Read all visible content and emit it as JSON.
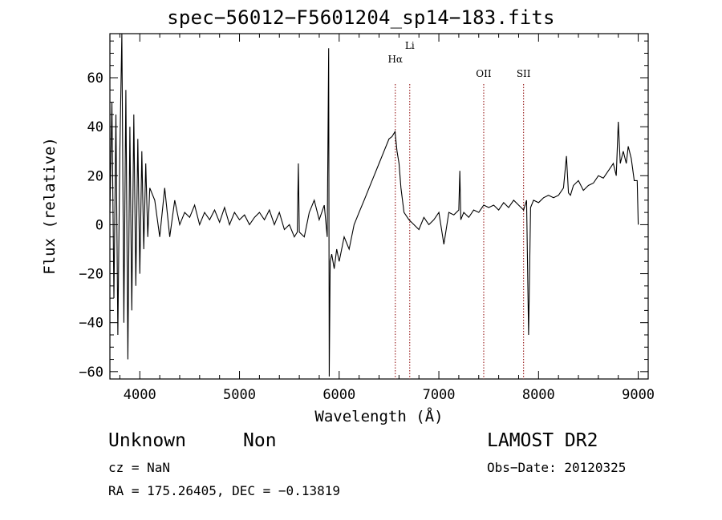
{
  "chart_data": {
    "type": "line",
    "title": "spec−56012−F5601204_sp14−183.fits",
    "xlabel": "Wavelength (Å)",
    "ylabel": "Flux (relative)",
    "xlim": [
      3700,
      9100
    ],
    "ylim": [
      -63,
      78
    ],
    "x_ticks": [
      4000,
      5000,
      6000,
      7000,
      8000,
      9000
    ],
    "y_ticks": [
      -60,
      -40,
      -20,
      0,
      20,
      40,
      60
    ],
    "y_tick_labels": [
      "−60",
      "−40",
      "−20",
      "0",
      "20",
      "40",
      "60"
    ],
    "lines": [
      {
        "label": "Hα",
        "wavelength": 6563
      },
      {
        "label": "Li",
        "wavelength": 6708
      },
      {
        "label": "OII",
        "wavelength": 7450
      },
      {
        "label": "SII",
        "wavelength": 7850
      }
    ],
    "series": [
      {
        "x": [
          3700,
          3720,
          3740,
          3760,
          3780,
          3800,
          3820,
          3840,
          3860,
          3880,
          3900,
          3920,
          3940,
          3960,
          3980,
          4000,
          4020,
          4040,
          4060,
          4080,
          4100,
          4150,
          4200,
          4250,
          4300,
          4350,
          4400,
          4450,
          4500,
          4550,
          4600,
          4650,
          4700,
          4750,
          4800,
          4850,
          4900,
          4950,
          5000,
          5050,
          5100,
          5150,
          5200,
          5250,
          5300,
          5350,
          5400,
          5450,
          5500,
          5550,
          5580,
          5590,
          5600,
          5650,
          5700,
          5750,
          5800,
          5850,
          5880,
          5895,
          5900,
          5910,
          5925,
          5950,
          5975,
          6000,
          6050,
          6100,
          6150,
          6200,
          6250,
          6300,
          6350,
          6400,
          6450,
          6500,
          6530,
          6560,
          6580,
          6600,
          6620,
          6650,
          6700,
          6750,
          6800,
          6850,
          6900,
          6950,
          7000,
          7050,
          7100,
          7150,
          7200,
          7210,
          7220,
          7250,
          7300,
          7350,
          7400,
          7450,
          7500,
          7550,
          7600,
          7650,
          7700,
          7750,
          7800,
          7850,
          7880,
          7900,
          7920,
          7930,
          7950,
          8000,
          8050,
          8100,
          8150,
          8200,
          8250,
          8280,
          8300,
          8320,
          8350,
          8400,
          8450,
          8500,
          8550,
          8600,
          8650,
          8700,
          8750,
          8780,
          8800,
          8820,
          8850,
          8880,
          8900,
          8930,
          8960,
          8990,
          9000
        ],
        "y": [
          5,
          50,
          -30,
          45,
          -45,
          30,
          78,
          -40,
          55,
          -55,
          40,
          -35,
          45,
          -25,
          35,
          -20,
          30,
          -10,
          25,
          -5,
          15,
          10,
          -5,
          15,
          -5,
          10,
          0,
          5,
          3,
          8,
          0,
          5,
          2,
          6,
          1,
          7,
          0,
          5,
          2,
          4,
          0,
          3,
          5,
          2,
          6,
          0,
          5,
          -2,
          0,
          -5,
          -3,
          25,
          -3,
          -5,
          5,
          10,
          2,
          8,
          -5,
          72,
          -62,
          -15,
          -12,
          -18,
          -10,
          -15,
          -5,
          -10,
          0,
          5,
          10,
          15,
          20,
          25,
          30,
          35,
          36,
          38,
          30,
          25,
          15,
          5,
          2,
          0,
          -2,
          3,
          0,
          2,
          5,
          -8,
          5,
          4,
          6,
          22,
          2,
          5,
          3,
          6,
          5,
          8,
          7,
          8,
          6,
          9,
          7,
          10,
          8,
          6,
          10,
          -45,
          7,
          8,
          10,
          9,
          11,
          12,
          11,
          12,
          15,
          28,
          13,
          12,
          16,
          18,
          14,
          16,
          17,
          20,
          19,
          22,
          25,
          20,
          42,
          25,
          30,
          25,
          32,
          27,
          18,
          18,
          0
        ]
      }
    ]
  },
  "footer": {
    "object_class": "Unknown",
    "subclass": "Non",
    "survey": "LAMOST DR2",
    "cz": "cz = NaN",
    "obs_date": "Obs−Date: 20120325",
    "coords": "RA = 175.26405, DEC =  −0.13819"
  }
}
